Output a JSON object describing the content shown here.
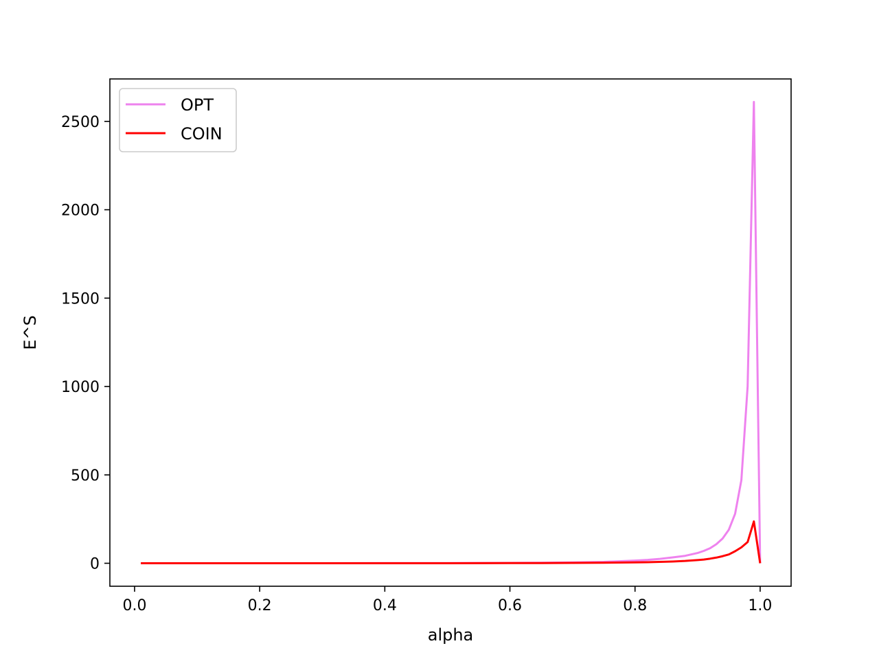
{
  "chart_data": {
    "type": "line",
    "title": "",
    "xlabel": "alpha",
    "ylabel": "E^S",
    "xlim": [
      -0.0395,
      1.0495
    ],
    "ylim": [
      -130,
      2740
    ],
    "xticks": [
      0.0,
      0.2,
      0.4,
      0.6,
      0.8,
      1.0
    ],
    "xtick_labels": [
      "0.0",
      "0.2",
      "0.4",
      "0.6",
      "0.8",
      "1.0"
    ],
    "yticks": [
      0,
      500,
      1000,
      1500,
      2000,
      2500
    ],
    "ytick_labels": [
      "0",
      "500",
      "1000",
      "1500",
      "2000",
      "2500"
    ],
    "grid": false,
    "legend_position": "upper-left",
    "x": [
      0.01,
      0.1,
      0.2,
      0.3,
      0.4,
      0.5,
      0.6,
      0.65,
      0.7,
      0.75,
      0.8,
      0.82,
      0.84,
      0.86,
      0.88,
      0.9,
      0.91,
      0.92,
      0.93,
      0.94,
      0.95,
      0.96,
      0.97,
      0.98,
      0.99,
      1.0
    ],
    "series": [
      {
        "name": "OPT",
        "color": "#ee82ee",
        "values": [
          0,
          0,
          0,
          0,
          1,
          1,
          2,
          3,
          5,
          8,
          15,
          19,
          25,
          33,
          42,
          58,
          70,
          85,
          108,
          140,
          190,
          280,
          470,
          1000,
          2610,
          0
        ]
      },
      {
        "name": "COIN",
        "color": "#ff0000",
        "values": [
          0,
          0,
          0,
          0,
          0,
          0,
          1,
          1,
          2,
          3,
          5,
          6,
          8,
          10,
          13,
          18,
          21,
          26,
          32,
          40,
          50,
          68,
          90,
          120,
          237,
          0
        ]
      }
    ]
  }
}
